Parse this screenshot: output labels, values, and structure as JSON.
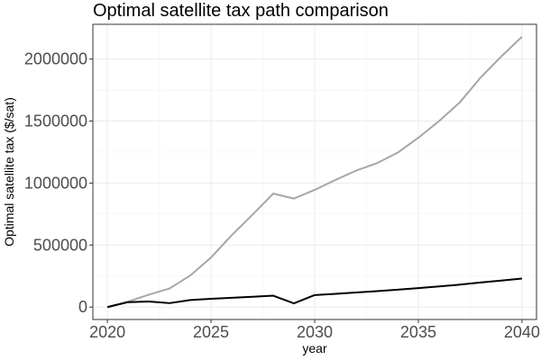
{
  "chart_data": {
    "type": "line",
    "title": "Optimal satellite tax path comparison",
    "xlabel": "year",
    "ylabel": "Optimal satellite tax ($/sat)",
    "xlim": [
      2019.3,
      2040.7
    ],
    "ylim": [
      -100000,
      2280000
    ],
    "x_ticks": [
      2020,
      2025,
      2030,
      2035,
      2040
    ],
    "y_ticks": [
      0,
      500000,
      1000000,
      1500000,
      2000000
    ],
    "y_minor_ticks": [
      250000,
      750000,
      1250000,
      1750000
    ],
    "x_minor_ticks": [
      2022.5,
      2027.5,
      2032.5,
      2037.5
    ],
    "grid": true,
    "x": [
      2020,
      2021,
      2022,
      2023,
      2024,
      2025,
      2026,
      2027,
      2028,
      2029,
      2030,
      2031,
      2032,
      2033,
      2034,
      2035,
      2036,
      2037,
      2038,
      2039,
      2040
    ],
    "series": [
      {
        "color": "#a6a6a6",
        "values": [
          0,
          45000,
          100000,
          150000,
          255000,
          400000,
          580000,
          745000,
          915000,
          875000,
          945000,
          1025000,
          1100000,
          1160000,
          1245000,
          1365000,
          1500000,
          1650000,
          1850000,
          2020000,
          2180000
        ]
      },
      {
        "color": "#000000",
        "values": [
          0,
          40000,
          45000,
          32000,
          57000,
          67000,
          75000,
          83000,
          92000,
          30000,
          97000,
          107000,
          118000,
          129000,
          140000,
          153000,
          167000,
          181000,
          198000,
          214000,
          230000
        ]
      }
    ]
  }
}
